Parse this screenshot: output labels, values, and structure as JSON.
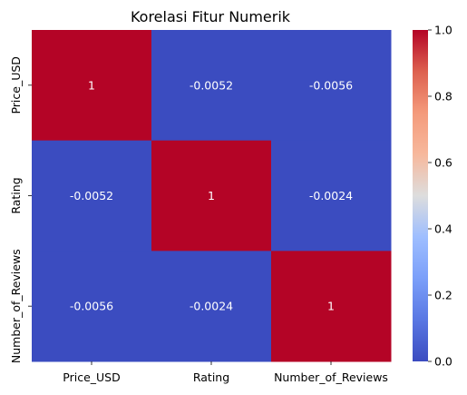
{
  "chart_data": {
    "type": "heatmap",
    "title": "Korelasi Fitur Numerik",
    "x_labels": [
      "Price_USD",
      "Rating",
      "Number_of_Reviews"
    ],
    "y_labels": [
      "Price_USD",
      "Rating",
      "Number_of_Reviews"
    ],
    "values": [
      [
        1,
        -0.0052,
        -0.0056
      ],
      [
        -0.0052,
        1,
        -0.0024
      ],
      [
        -0.0056,
        -0.0024,
        1
      ]
    ],
    "annotations": [
      [
        "1",
        "-0.0052",
        "-0.0056"
      ],
      [
        "-0.0052",
        "1",
        "-0.0024"
      ],
      [
        "-0.0056",
        "-0.0024",
        "1"
      ]
    ],
    "colormap": "coolwarm",
    "colorbar": {
      "range": [
        0.0,
        1.0
      ],
      "ticks": [
        0.0,
        0.2,
        0.4,
        0.6,
        0.8,
        1.0
      ],
      "tick_labels": [
        "0.0",
        "0.2",
        "0.4",
        "0.6",
        "0.8",
        "1.0"
      ]
    },
    "colors": {
      "low": "#3b4cc0",
      "mid": "#dddddd",
      "high": "#b40426"
    }
  }
}
